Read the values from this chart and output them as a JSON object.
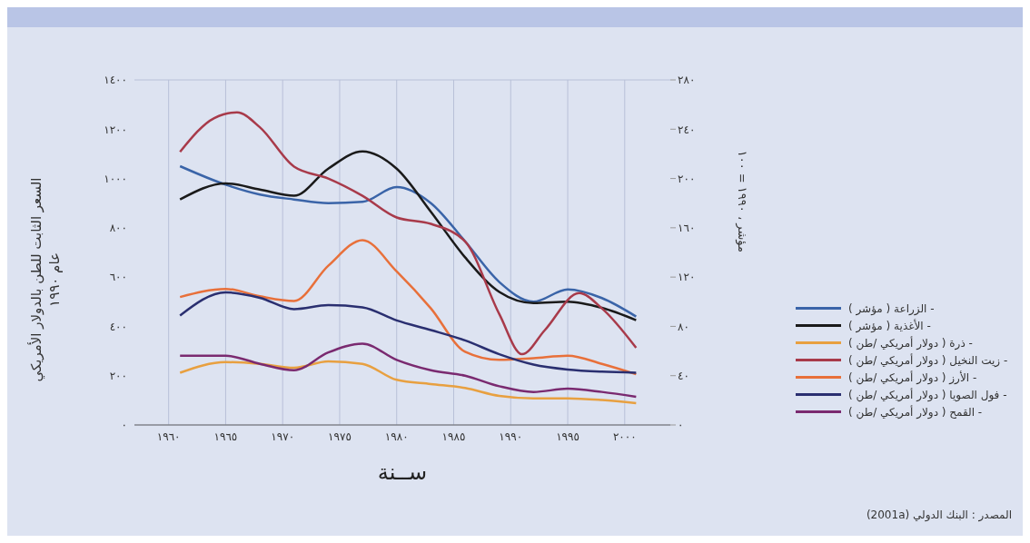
{
  "chart_data": {
    "type": "line",
    "xlabel": "ســنة",
    "ylabel": "السعر الثابت للطن بالدولار الأمريكي\nعام ١٩٩٠",
    "y2label": "مؤشر ، ١٩٩٠ = ١٠٠",
    "annotations": [
      "المصدر : البنك الدولي (2001a)"
    ],
    "x": [
      1961,
      1965,
      1968,
      1971,
      1974,
      1977,
      1980,
      1983,
      1986,
      1989,
      1992,
      1995,
      1998,
      2001
    ],
    "series": [
      {
        "name": "- الزراعة ( مؤشر )",
        "color": "#3a64a8",
        "axis": "y2",
        "values": [
          210,
          195,
          187,
          183,
          180,
          181,
          193,
          180,
          149,
          116,
          100,
          110,
          103,
          88
        ]
      },
      {
        "name": "- الأغذية ( مؤشر )",
        "color": "#1a1a1a",
        "axis": "y2",
        "values": [
          183,
          196,
          191,
          186,
          208,
          222,
          208,
          173,
          136,
          108,
          99,
          100,
          95,
          85
        ]
      },
      {
        "name": "- ذرة ( دولار أمريكي /طن )",
        "color": "#e8a040",
        "values": [
          212,
          255,
          248,
          232,
          258,
          248,
          183,
          166,
          150,
          118,
          108,
          108,
          101,
          88
        ]
      },
      {
        "name": "- زيت النخيل ( دولار أمريكي /طن )",
        "color": "#a83a4a",
        "x": [
          1961,
          1964,
          1966,
          1968,
          1971,
          1974,
          1977,
          1980,
          1983,
          1986,
          1989,
          1991,
          1993,
          1996,
          1998,
          2001
        ],
        "values": [
          1108,
          1245,
          1268,
          1208,
          1048,
          1000,
          930,
          842,
          816,
          745,
          450,
          287,
          385,
          535,
          473,
          313
        ]
      },
      {
        "name": "- الأرز ( دولار أمريكي /طن )",
        "color": "#e8703a",
        "values": [
          519,
          552,
          522,
          503,
          646,
          750,
          623,
          473,
          297,
          264,
          271,
          281,
          248,
          206
        ]
      },
      {
        "name": "- فول الصويا ( دولار أمريكي /طن )",
        "color": "#2a2f70",
        "values": [
          444,
          538,
          516,
          470,
          486,
          477,
          424,
          385,
          343,
          287,
          245,
          225,
          216,
          212
        ]
      },
      {
        "name": "- القمح ( دولار أمريكي /طن )",
        "color": "#7a2a70",
        "values": [
          281,
          281,
          248,
          222,
          294,
          330,
          264,
          222,
          200,
          157,
          134,
          147,
          134,
          114
        ]
      }
    ],
    "xlim": [
      1957,
      2004
    ],
    "xticks": [
      {
        "value": 1960,
        "label": "١٩٦٠"
      },
      {
        "value": 1965,
        "label": "١٩٦٥"
      },
      {
        "value": 1970,
        "label": "١٩٧٠"
      },
      {
        "value": 1975,
        "label": "١٩٧٥"
      },
      {
        "value": 1980,
        "label": "١٩٨٠"
      },
      {
        "value": 1985,
        "label": "١٩٨٥"
      },
      {
        "value": 1990,
        "label": "١٩٩٠"
      },
      {
        "value": 1995,
        "label": "١٩٩٥"
      },
      {
        "value": 2000,
        "label": "٢٠٠٠"
      }
    ],
    "ylim": [
      0,
      1400
    ],
    "yticks": [
      {
        "value": 0,
        "label": "٠"
      },
      {
        "value": 200,
        "label": "٢٠٠"
      },
      {
        "value": 400,
        "label": "٤٠٠"
      },
      {
        "value": 600,
        "label": "٦٠٠"
      },
      {
        "value": 800,
        "label": "٨٠٠"
      },
      {
        "value": 1000,
        "label": "١٠٠٠"
      },
      {
        "value": 1200,
        "label": "١٢٠٠"
      },
      {
        "value": 1400,
        "label": "١٤٠٠"
      }
    ],
    "y2lim": [
      0,
      280
    ],
    "y2ticks": [
      {
        "value": 0,
        "label": "٠"
      },
      {
        "value": 40,
        "label": "٤٠"
      },
      {
        "value": 80,
        "label": "٨٠"
      },
      {
        "value": 120,
        "label": "١٢٠"
      },
      {
        "value": 160,
        "label": "١٦٠"
      },
      {
        "value": 200,
        "label": "٢٠٠"
      },
      {
        "value": 240,
        "label": "٢٤٠"
      },
      {
        "value": 280,
        "label": "٢٨٠"
      }
    ],
    "grid": true,
    "legend": "right",
    "marker": "none",
    "line_style": "solid"
  }
}
